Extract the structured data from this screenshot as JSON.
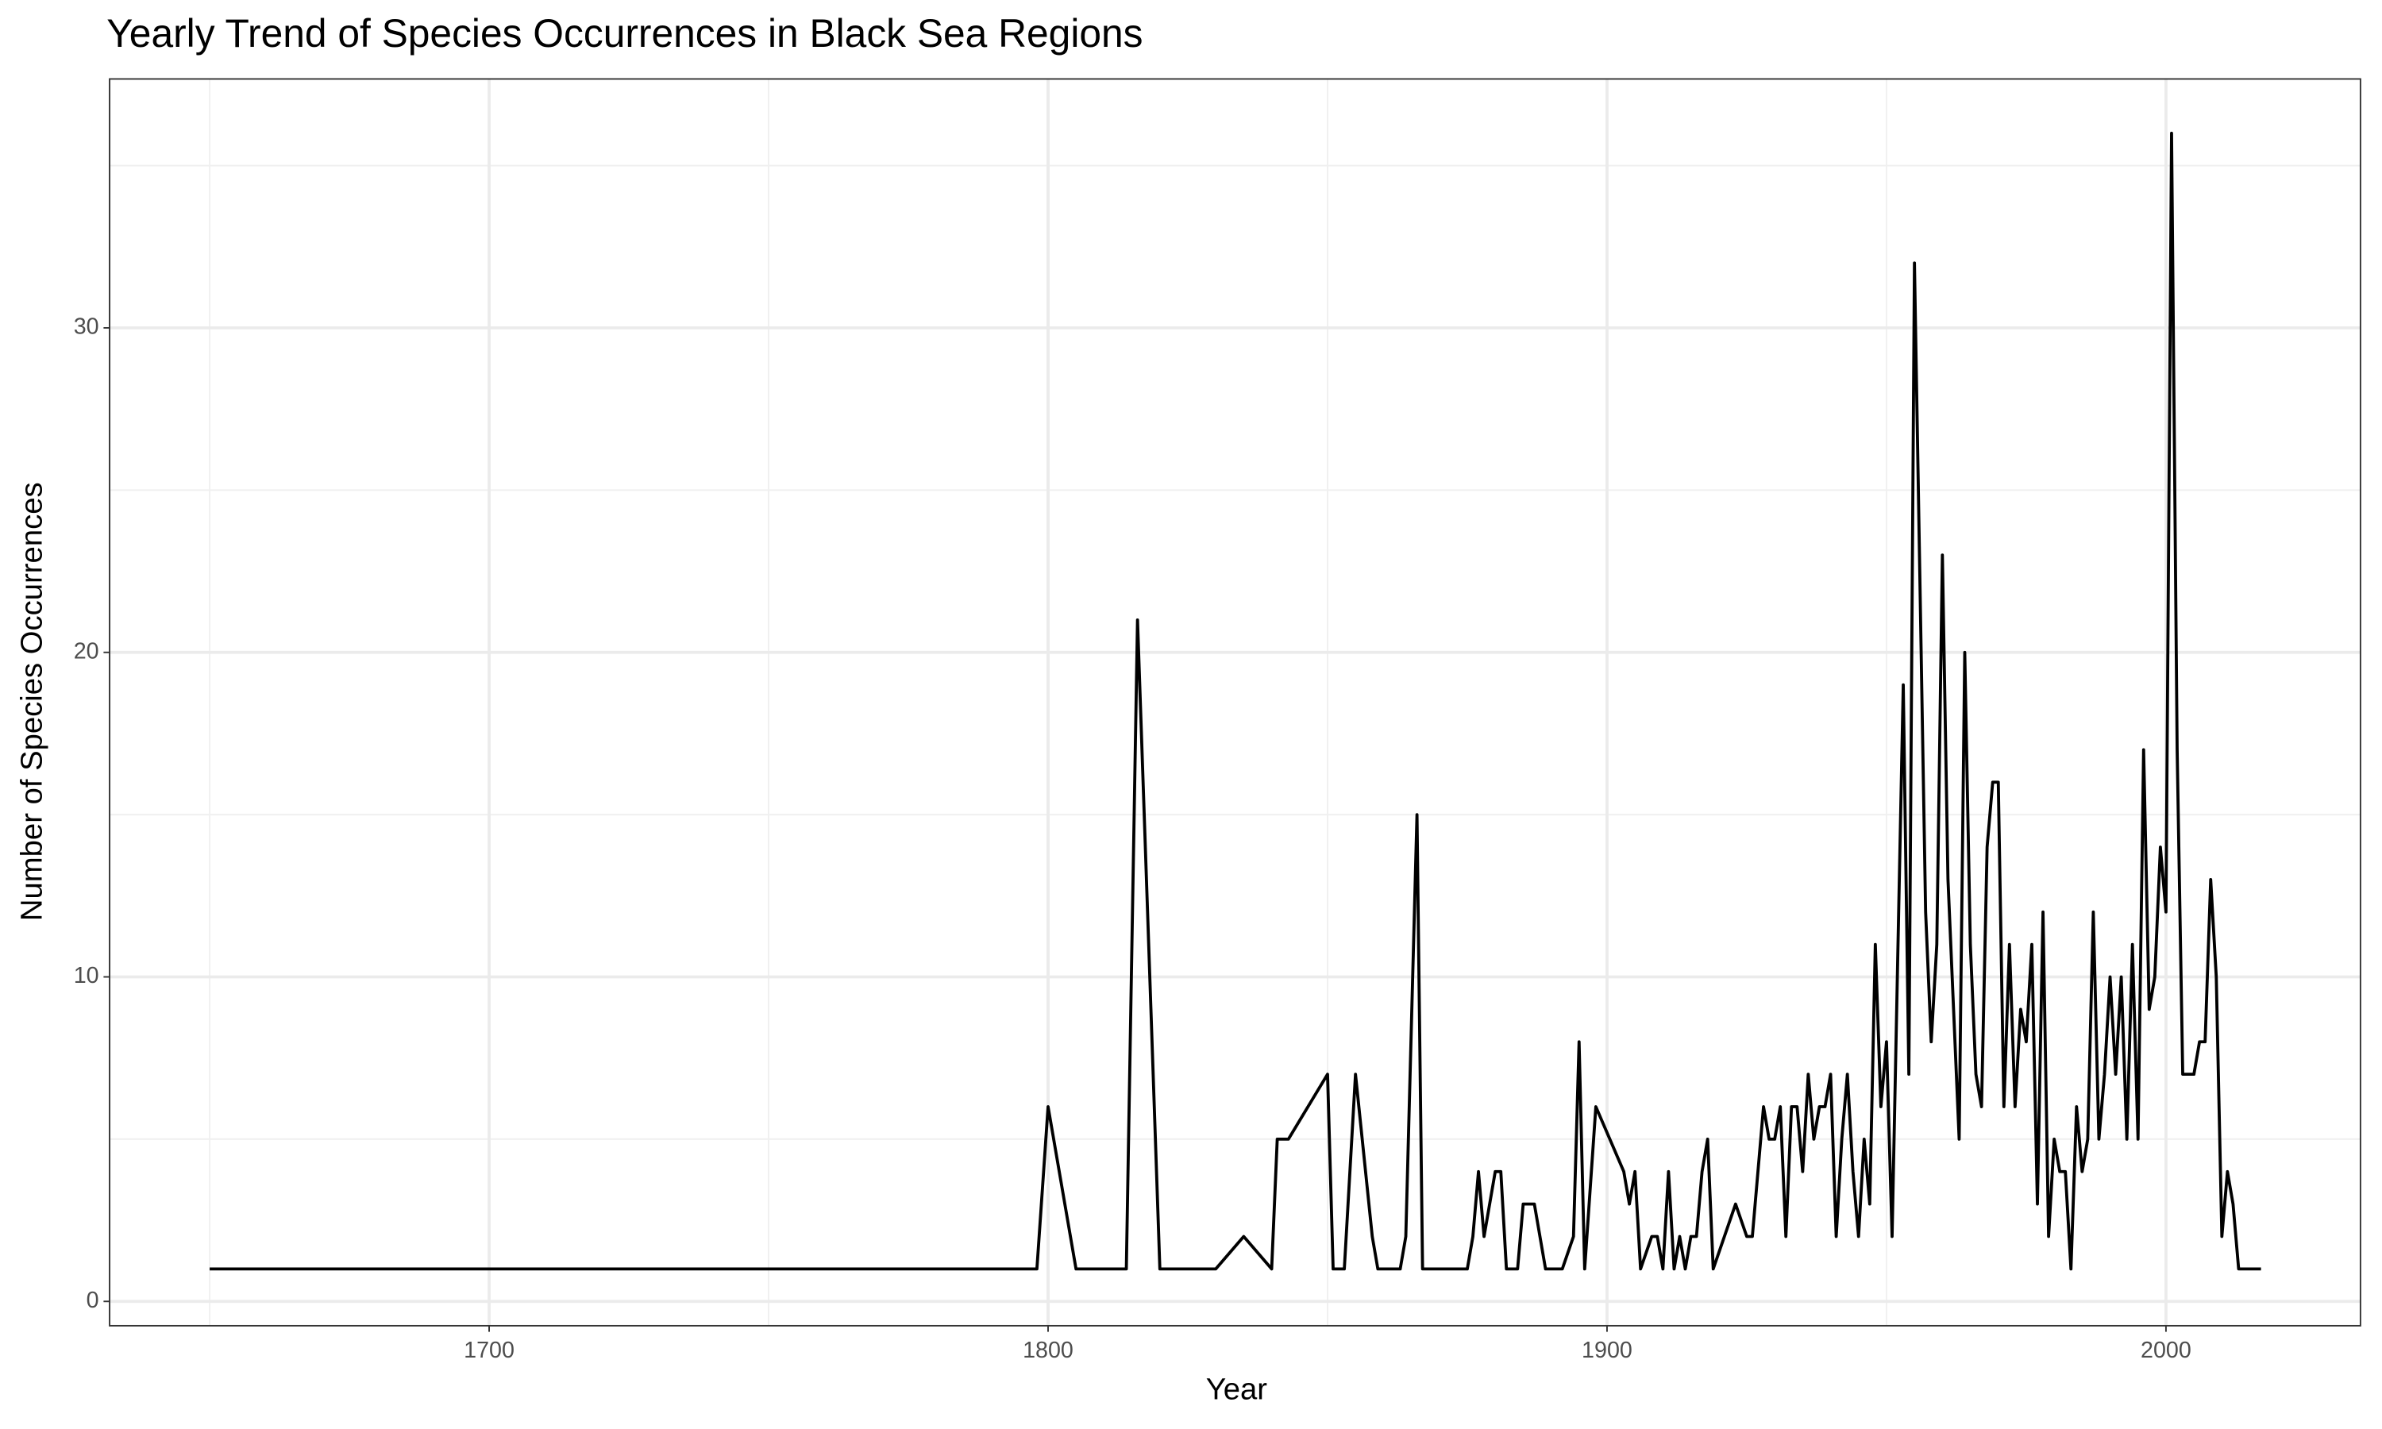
{
  "chart_data": {
    "type": "line",
    "title": "Yearly Trend of Species Occurrences in Black Sea Regions",
    "x_label": "Year",
    "y_label": "Number of Species Occurrences",
    "x": [
      1650,
      1798,
      1800,
      1805,
      1814,
      1816,
      1820,
      1830,
      1835,
      1840,
      1841,
      1843,
      1850,
      1851,
      1853,
      1855,
      1858,
      1859,
      1863,
      1864,
      1866,
      1867,
      1875,
      1876,
      1877,
      1878,
      1880,
      1881,
      1882,
      1884,
      1885,
      1887,
      1889,
      1892,
      1894,
      1895,
      1896,
      1898,
      1903,
      1904,
      1905,
      1906,
      1908,
      1909,
      1910,
      1911,
      1912,
      1913,
      1914,
      1915,
      1916,
      1917,
      1918,
      1919,
      1923,
      1925,
      1926,
      1928,
      1929,
      1930,
      1931,
      1932,
      1933,
      1934,
      1935,
      1936,
      1937,
      1938,
      1939,
      1940,
      1941,
      1942,
      1943,
      1944,
      1945,
      1946,
      1947,
      1948,
      1949,
      1950,
      1951,
      1953,
      1954,
      1955,
      1957,
      1958,
      1959,
      1960,
      1961,
      1963,
      1964,
      1965,
      1966,
      1967,
      1968,
      1969,
      1970,
      1971,
      1972,
      1973,
      1974,
      1975,
      1976,
      1977,
      1978,
      1979,
      1980,
      1981,
      1982,
      1983,
      1984,
      1985,
      1986,
      1987,
      1988,
      1989,
      1990,
      1991,
      1992,
      1993,
      1994,
      1995,
      1996,
      1997,
      1998,
      1999,
      2000,
      2001,
      2002,
      2003,
      2005,
      2006,
      2007,
      2008,
      2009,
      2010,
      2011,
      2012,
      2013,
      2017
    ],
    "series": [
      {
        "color": "#000000",
        "values": [
          1,
          1,
          6,
          1,
          1,
          21,
          1,
          1,
          2,
          1,
          5,
          5,
          7,
          1,
          1,
          7,
          2,
          1,
          1,
          2,
          15,
          1,
          1,
          2,
          4,
          2,
          4,
          4,
          1,
          1,
          3,
          3,
          1,
          1,
          2,
          8,
          1,
          6,
          4,
          3,
          4,
          1,
          2,
          2,
          1,
          4,
          1,
          2,
          1,
          2,
          2,
          4,
          5,
          1,
          3,
          2,
          2,
          6,
          5,
          5,
          6,
          2,
          6,
          6,
          4,
          7,
          5,
          6,
          6,
          7,
          2,
          5,
          7,
          4,
          2,
          5,
          3,
          11,
          6,
          8,
          2,
          19,
          7,
          32,
          12,
          8,
          11,
          23,
          13,
          5,
          20,
          11,
          7,
          6,
          14,
          16,
          16,
          6,
          11,
          6,
          9,
          8,
          11,
          3,
          12,
          2,
          5,
          4,
          4,
          1,
          6,
          4,
          5,
          12,
          5,
          7,
          10,
          7,
          10,
          5,
          11,
          5,
          17,
          9,
          10,
          14,
          12,
          36,
          17,
          7,
          7,
          8,
          8,
          13,
          10,
          2,
          4,
          3,
          1,
          1
        ]
      }
    ],
    "xlim": [
      1632.1,
      2034.8
    ],
    "xticks": [
      1700,
      1800,
      1900,
      2000
    ],
    "x_minor_grid": [
      1650,
      1750,
      1850,
      1950
    ],
    "ylim": [
      -0.75,
      37.67
    ],
    "yticks": [
      0,
      10,
      20,
      30
    ],
    "y_minor_grid": [
      5,
      15,
      25,
      35
    ],
    "grid": true
  }
}
